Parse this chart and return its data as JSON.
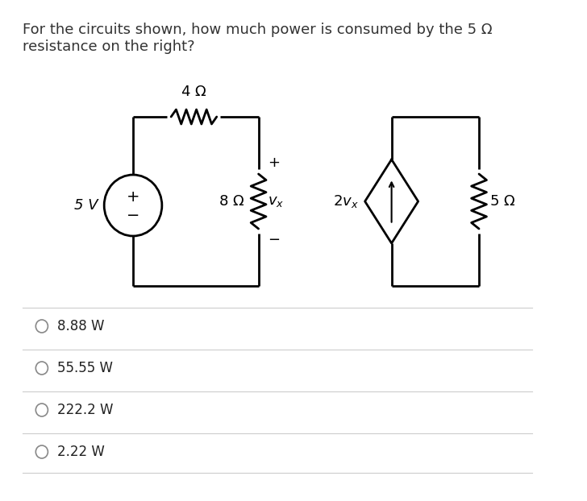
{
  "background_color": "#ffffff",
  "title_text": "For the circuits shown, how much power is consumed by the 5 Ω\nresistance on the right?",
  "title_fontsize": 13,
  "options": [
    "8.88 W",
    "55.55 W",
    "222.2 W",
    "2.22 W"
  ],
  "separator_color": "#cccccc",
  "text_color": "#333333",
  "circuit_lw": 2.0,
  "font_size_labels": 13,
  "font_size_options": 12
}
